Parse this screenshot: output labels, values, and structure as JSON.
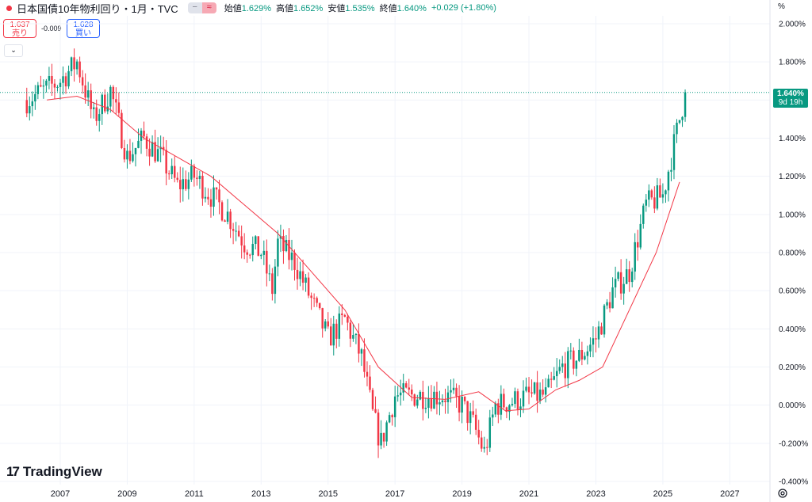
{
  "header": {
    "title": "日本国債10年物利回り・1月・TVC",
    "ohlc": [
      {
        "label": "始値",
        "value": "1.629%"
      },
      {
        "label": "高値",
        "value": "1.652%"
      },
      {
        "label": "安値",
        "value": "1.535%"
      },
      {
        "label": "終値",
        "value": "1.640%"
      }
    ],
    "change": "+0.029 (+1.80%)",
    "toggle_minus": "−",
    "toggle_approx": "≈",
    "unit_label": "%"
  },
  "trade": {
    "sell_value": "1.637",
    "sell_label": "売り",
    "buy_value": "1.628",
    "buy_label": "買い",
    "spread": "-0.009",
    "collapse_glyph": "⌄"
  },
  "price_badge": {
    "value": "1.640%",
    "countdown": "9d 19h"
  },
  "brand": {
    "name": "TradingView",
    "mark": "17"
  },
  "colors": {
    "up": "#089981",
    "down": "#f23645",
    "ma": "#f23645",
    "grid": "#f0f3fa",
    "last_price_line": "#089981"
  },
  "icons": {
    "settings": "gear-icon",
    "status": "status-dot"
  },
  "chart_data": {
    "type": "candlestick",
    "symbol": "日本国債10年物利回り",
    "interval": "1月",
    "source": "TVC",
    "x_tick_labels": [
      "2007",
      "2009",
      "2011",
      "2013",
      "2015",
      "2017",
      "2019",
      "2021",
      "2023",
      "2025",
      "2027"
    ],
    "y_tick_labels": [
      "-0.400%",
      "-0.200%",
      "0.000%",
      "0.200%",
      "0.400%",
      "0.600%",
      "0.800%",
      "1.000%",
      "1.200%",
      "1.400%",
      "1.600%",
      "1.800%",
      "2.000%"
    ],
    "ylim": [
      -0.4,
      2.0
    ],
    "xlim": [
      2005.2,
      2028.2
    ],
    "last_close": 1.64,
    "last_time": 2025.67,
    "series": [
      {
        "name": "closes",
        "x": [
          2006.0,
          2006.5,
          2007.0,
          2007.5,
          2008.0,
          2008.5,
          2009.0,
          2009.5,
          2010.0,
          2010.5,
          2011.0,
          2011.5,
          2012.0,
          2012.5,
          2013.0,
          2013.33,
          2013.5,
          2014.0,
          2014.5,
          2015.0,
          2015.5,
          2016.0,
          2016.33,
          2016.58,
          2017.0,
          2017.5,
          2018.0,
          2018.5,
          2019.0,
          2019.33,
          2019.67,
          2020.0,
          2020.5,
          2021.0,
          2021.5,
          2022.0,
          2022.5,
          2023.0,
          2023.5,
          2024.0,
          2024.5,
          2025.0,
          2025.25,
          2025.5,
          2025.67
        ],
        "values": [
          1.6,
          1.65,
          1.7,
          1.8,
          1.5,
          1.65,
          1.3,
          1.4,
          1.3,
          1.15,
          1.2,
          1.1,
          1.0,
          0.85,
          0.8,
          0.6,
          0.85,
          0.75,
          0.55,
          0.35,
          0.45,
          0.25,
          -0.05,
          -0.2,
          0.05,
          0.05,
          0.05,
          0.05,
          0.0,
          -0.1,
          -0.25,
          0.0,
          0.02,
          0.05,
          0.05,
          0.2,
          0.25,
          0.35,
          0.6,
          0.7,
          1.05,
          1.1,
          1.3,
          1.5,
          1.64
        ]
      },
      {
        "name": "ma",
        "x": [
          2006.6,
          2007.5,
          2008.5,
          2009.5,
          2010.5,
          2011.5,
          2012.5,
          2013.5,
          2014.5,
          2015.5,
          2016.5,
          2017.5,
          2018.5,
          2019.5,
          2020.3,
          2021.0,
          2021.8,
          2022.5,
          2023.2,
          2024.0,
          2024.8,
          2025.5
        ],
        "values": [
          1.6,
          1.62,
          1.55,
          1.4,
          1.3,
          1.2,
          1.05,
          0.9,
          0.7,
          0.5,
          0.2,
          0.04,
          0.03,
          0.07,
          -0.03,
          -0.02,
          0.08,
          0.13,
          0.2,
          0.5,
          0.8,
          1.17
        ]
      }
    ]
  }
}
